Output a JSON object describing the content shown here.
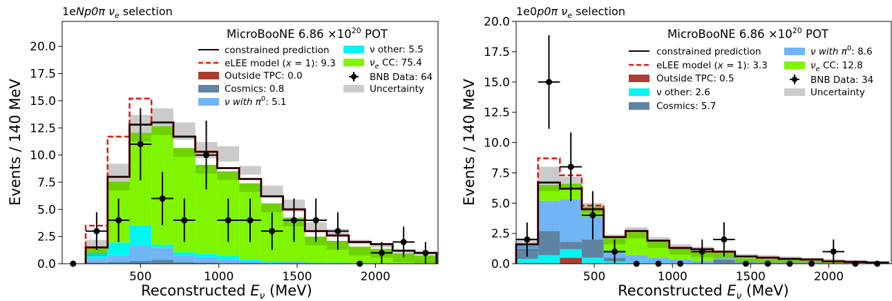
{
  "chart_data": [
    {
      "type": "histogram",
      "title": "1eNp0π ν_e selection",
      "title_parts": {
        "a": "1e",
        "b": "N",
        "c": "p0π ",
        "d": "ν",
        "e": "e",
        "f": " selection"
      },
      "annotation": "MicroBooNE 6.86 ×10²⁰ POT",
      "annotation_parts": {
        "text": "MicroBooNE 6.86 ×10",
        "sup": "20",
        "tail": " POT"
      },
      "xlabel": "Reconstructed E_ν (MeV)",
      "xlabel_parts": {
        "a": "Reconstructed ",
        "b": "E",
        "c": "ν",
        "d": " (MeV)"
      },
      "ylabel": "Events / 140 MeV",
      "xlim": [
        0,
        2400
      ],
      "ylim": [
        0,
        22.3
      ],
      "xticks": [
        500,
        1000,
        1500,
        2000
      ],
      "yticks": [
        0.0,
        2.5,
        5.0,
        7.5,
        10.0,
        12.5,
        15.0,
        17.5,
        20.0
      ],
      "bin_edges": [
        150,
        290,
        430,
        570,
        710,
        850,
        990,
        1130,
        1270,
        1410,
        1550,
        1690,
        1830,
        1970,
        2110,
        2250,
        2390
      ],
      "stack": [
        {
          "name": "Outside TPC: 0.0",
          "color": "#a93f2c",
          "values": [
            0,
            0,
            0,
            0,
            0,
            0,
            0,
            0,
            0,
            0,
            0,
            0,
            0,
            0,
            0,
            0
          ]
        },
        {
          "name": "Cosmics: 0.8",
          "color": "#5e84a4",
          "values": [
            0.1,
            0.15,
            0.25,
            0.35,
            0.15,
            0.1,
            0.05,
            0,
            0,
            0.05,
            0,
            0,
            0,
            0,
            0,
            0
          ]
        },
        {
          "name": "ν with π⁰: 5.1",
          "color": "#70b5f5",
          "values": [
            0.4,
            0.6,
            1.4,
            1.1,
            0.6,
            0.5,
            0.35,
            0.2,
            0.1,
            0.1,
            0.05,
            0.05,
            0.02,
            0.02,
            0.01,
            0.01
          ]
        },
        {
          "name": "ν other: 5.5",
          "color": "#00f6f3",
          "values": [
            0.5,
            1.2,
            1.9,
            0.3,
            0.3,
            0.3,
            0.3,
            0.2,
            0.15,
            0.1,
            0.05,
            0.05,
            0.05,
            0.05,
            0.05,
            0.05
          ]
        },
        {
          "name": "ν_e CC: 75.4",
          "color": "#7ff500",
          "values": [
            0.5,
            5.6,
            8.5,
            10.9,
            9.6,
            8.2,
            7.8,
            7.0,
            5.3,
            4.0,
            2.4,
            2.0,
            1.5,
            1.3,
            0.9,
            0.7
          ]
        }
      ],
      "stack_dark_band": 0.8,
      "uncertainty_color": "#cbcbcb",
      "uncertainty": [
        [
          1.2,
          2.2
        ],
        [
          7.0,
          9.2
        ],
        [
          12.0,
          13.7
        ],
        [
          12.5,
          14.3
        ],
        [
          11.4,
          13.0
        ],
        [
          9.7,
          11.2
        ],
        [
          9.4,
          10.8
        ],
        [
          8.2,
          9.0
        ],
        [
          6.1,
          7.2
        ],
        [
          4.8,
          5.9
        ],
        [
          3.0,
          3.8
        ],
        [
          2.5,
          3.2
        ],
        [
          1.8,
          2.2
        ],
        [
          1.5,
          1.9
        ],
        [
          1.0,
          1.3
        ],
        [
          0.8,
          1.1
        ]
      ],
      "constrained_prediction": {
        "name": "constrained prediction",
        "color": "#000000",
        "values": [
          1.5,
          8.0,
          12.8,
          13.0,
          11.7,
          10.3,
          8.8,
          7.8,
          6.2,
          5.0,
          3.0,
          2.6,
          2.0,
          1.8,
          1.2,
          1.0
        ]
      },
      "elee_model": {
        "name": "eLEE model (x = 1): 9.3",
        "name_parts": {
          "a": "eLEE model (",
          "b": "x",
          "c": " = 1): 9.3"
        },
        "color": "#e8110c",
        "values": [
          3.5,
          11.7,
          15.2,
          13.0,
          11.7,
          10.3,
          8.8,
          7.8,
          6.2,
          5.0,
          3.0,
          2.6,
          2.0,
          1.8,
          1.2,
          1.0
        ]
      },
      "data": {
        "name": "BNB Data: 64",
        "points": [
          [
            70,
            0,
            0
          ],
          [
            220,
            3,
            1.73
          ],
          [
            360,
            4,
            2.0
          ],
          [
            500,
            11,
            3.32
          ],
          [
            640,
            6,
            2.45
          ],
          [
            780,
            4,
            2.0
          ],
          [
            920,
            10,
            3.16
          ],
          [
            1060,
            4,
            2.0
          ],
          [
            1200,
            4,
            2.0
          ],
          [
            1340,
            3,
            1.73
          ],
          [
            1480,
            4,
            2.0
          ],
          [
            1620,
            4,
            2.0
          ],
          [
            1760,
            3,
            1.73
          ],
          [
            1900,
            0,
            0
          ],
          [
            2040,
            1,
            1.0
          ],
          [
            2180,
            2,
            1.41
          ],
          [
            2320,
            1,
            1.0
          ]
        ]
      },
      "legend_left": [
        "constrained prediction",
        "eLEE model (x = 1): 9.3",
        "Outside TPC: 0.0",
        "Cosmics: 0.8",
        "ν with π⁰: 5.1"
      ],
      "legend_right": [
        "ν other: 5.5",
        "ν_e CC: 75.4",
        "BNB Data: 64",
        "Uncertainty"
      ],
      "legend_labels": {
        "constrained": "constrained prediction",
        "elee_a": "eLEE model (",
        "elee_b": "x",
        "elee_c": " = 1): 9.3",
        "outside": "Outside TPC: 0.0",
        "cosmics": "Cosmics: 0.8",
        "pi0_a": "ν with π",
        "pi0_b": "0",
        "pi0_c": ": 5.1",
        "other": "ν other: 5.5",
        "cc_a": "ν",
        "cc_b": "e",
        "cc_c": " CC: 75.4",
        "data": "BNB Data: 64",
        "unc": "Uncertainty"
      }
    },
    {
      "type": "histogram",
      "title": "1e0p0π ν_e selection",
      "title_parts": {
        "a": "1e0",
        "b": "p",
        "c": "0π ",
        "d": "ν",
        "e": "e",
        "f": " selection"
      },
      "annotation": "MicroBooNE 6.86 ×10²⁰ POT",
      "annotation_parts": {
        "text": "MicroBooNE 6.86 ×10",
        "sup": "20",
        "tail": " POT"
      },
      "xlabel": "Reconstructed E_ν (MeV)",
      "xlabel_parts": {
        "a": "Reconstructed ",
        "b": "E",
        "c": "ν",
        "d": " (MeV)"
      },
      "ylabel": "Events / 140 MeV",
      "xlim": [
        0,
        2400
      ],
      "ylim": [
        0,
        20.0
      ],
      "xticks": [
        500,
        1000,
        1500,
        2000
      ],
      "yticks": [
        0.0,
        2.5,
        5.0,
        7.5,
        10.0,
        12.5,
        15.0,
        17.5,
        20.0
      ],
      "bin_edges": [
        0,
        140,
        280,
        420,
        560,
        700,
        840,
        980,
        1120,
        1260,
        1400,
        1540,
        1680,
        1820,
        1960,
        2100,
        2240,
        2380
      ],
      "stack": [
        {
          "name": "Outside TPC: 0.5",
          "color": "#a93f2c",
          "values": [
            0,
            0,
            0.5,
            0,
            0,
            0,
            0,
            0,
            0,
            0,
            0,
            0,
            0,
            0,
            0,
            0,
            0
          ]
        },
        {
          "name": "ν other: 2.6",
          "color": "#00f6f3",
          "values": [
            0.4,
            0.7,
            0.7,
            0.5,
            0.2,
            0.1,
            0.1,
            0.05,
            0.05,
            0.05,
            0.05,
            0.05,
            0.05,
            0.05,
            0,
            0,
            0
          ]
        },
        {
          "name": "Cosmics: 5.7",
          "color": "#5e84a4",
          "values": [
            0.8,
            2.0,
            0.6,
            1.5,
            0.3,
            0,
            0,
            0,
            0,
            0.3,
            0,
            0,
            0,
            0,
            0,
            0,
            0
          ]
        },
        {
          "name": "ν with π⁰: 8.6",
          "color": "#70b5f5",
          "values": [
            0.3,
            2.5,
            3.5,
            1.9,
            0.5,
            0.6,
            0.4,
            0.3,
            0.2,
            0.1,
            0.1,
            0.05,
            0.05,
            0.05,
            0.05,
            0,
            0
          ]
        },
        {
          "name": "ν_e CC: 12.8",
          "color": "#7ff500",
          "values": [
            0.1,
            1.3,
            1.3,
            0.8,
            1.1,
            1.9,
            1.3,
            0.9,
            0.8,
            0.5,
            0.3,
            0.3,
            0.2,
            0.2,
            0.1,
            0.1,
            0.1
          ]
        }
      ],
      "stack_dark_band": 0.5,
      "uncertainty_color": "#cbcbcb",
      "uncertainty": [
        [
          1.3,
          2.1
        ],
        [
          6.4,
          8.0
        ],
        [
          5.7,
          7.2
        ],
        [
          4.2,
          5.0
        ],
        [
          2.0,
          2.4
        ],
        [
          2.4,
          3.0
        ],
        [
          1.8,
          2.2
        ],
        [
          1.2,
          1.6
        ],
        [
          1.0,
          1.4
        ],
        [
          0.7,
          1.1
        ],
        [
          0.4,
          0.8
        ],
        [
          0.3,
          0.7
        ],
        [
          0.2,
          0.6
        ],
        [
          0.2,
          0.5
        ],
        [
          0.1,
          0.4
        ],
        [
          0.1,
          0.3
        ],
        [
          0.1,
          0.2
        ]
      ],
      "constrained_prediction": {
        "name": "constrained prediction",
        "color": "#000000",
        "values": [
          1.6,
          6.7,
          6.2,
          4.5,
          2.2,
          2.7,
          1.9,
          1.3,
          1.2,
          1.0,
          0.6,
          0.5,
          0.4,
          0.35,
          0.2,
          0.15,
          0.1
        ]
      },
      "elee_model": {
        "name": "eLEE model (x = 1): 3.3",
        "name_parts": {
          "a": "eLEE model (",
          "b": "x",
          "c": " = 1): 3.3"
        },
        "color": "#e8110c",
        "values": [
          1.6,
          8.7,
          7.3,
          4.8,
          2.2,
          2.7,
          1.9,
          1.3,
          1.2,
          1.0,
          0.6,
          0.5,
          0.4,
          0.35,
          0.2,
          0.15,
          0.1
        ]
      },
      "data": {
        "name": "BNB Data: 34",
        "points": [
          [
            70,
            2,
            1.41
          ],
          [
            210,
            15,
            3.87
          ],
          [
            350,
            8,
            2.83
          ],
          [
            490,
            4,
            2.0
          ],
          [
            630,
            1,
            1.0
          ],
          [
            770,
            0,
            0
          ],
          [
            910,
            0,
            0
          ],
          [
            1050,
            0,
            0
          ],
          [
            1190,
            1,
            1.0
          ],
          [
            1330,
            2,
            1.41
          ],
          [
            1470,
            0,
            0
          ],
          [
            1610,
            0,
            0
          ],
          [
            1750,
            0,
            0
          ],
          [
            1890,
            0,
            0
          ],
          [
            2030,
            1,
            1.0
          ],
          [
            2170,
            0,
            0
          ],
          [
            2310,
            0,
            0
          ]
        ]
      },
      "legend_left": [
        "constrained prediction",
        "eLEE model (x = 1): 3.3",
        "Outside TPC: 0.5",
        "ν other: 2.6",
        "Cosmics: 5.7"
      ],
      "legend_right": [
        "ν with π⁰: 8.6",
        "ν_e CC: 12.8",
        "BNB Data: 34",
        "Uncertainty"
      ],
      "legend_labels": {
        "constrained": "constrained prediction",
        "elee_a": "eLEE model (",
        "elee_b": "x",
        "elee_c": " = 1): 3.3",
        "outside": "Outside TPC: 0.5",
        "other": "ν other: 2.6",
        "cosmics": "Cosmics: 5.7",
        "pi0_a": "ν with π",
        "pi0_b": "0",
        "pi0_c": ": 8.6",
        "cc_a": "ν",
        "cc_b": "e",
        "cc_c": " CC: 12.8",
        "data": "BNB Data: 34",
        "unc": "Uncertainty"
      }
    }
  ]
}
